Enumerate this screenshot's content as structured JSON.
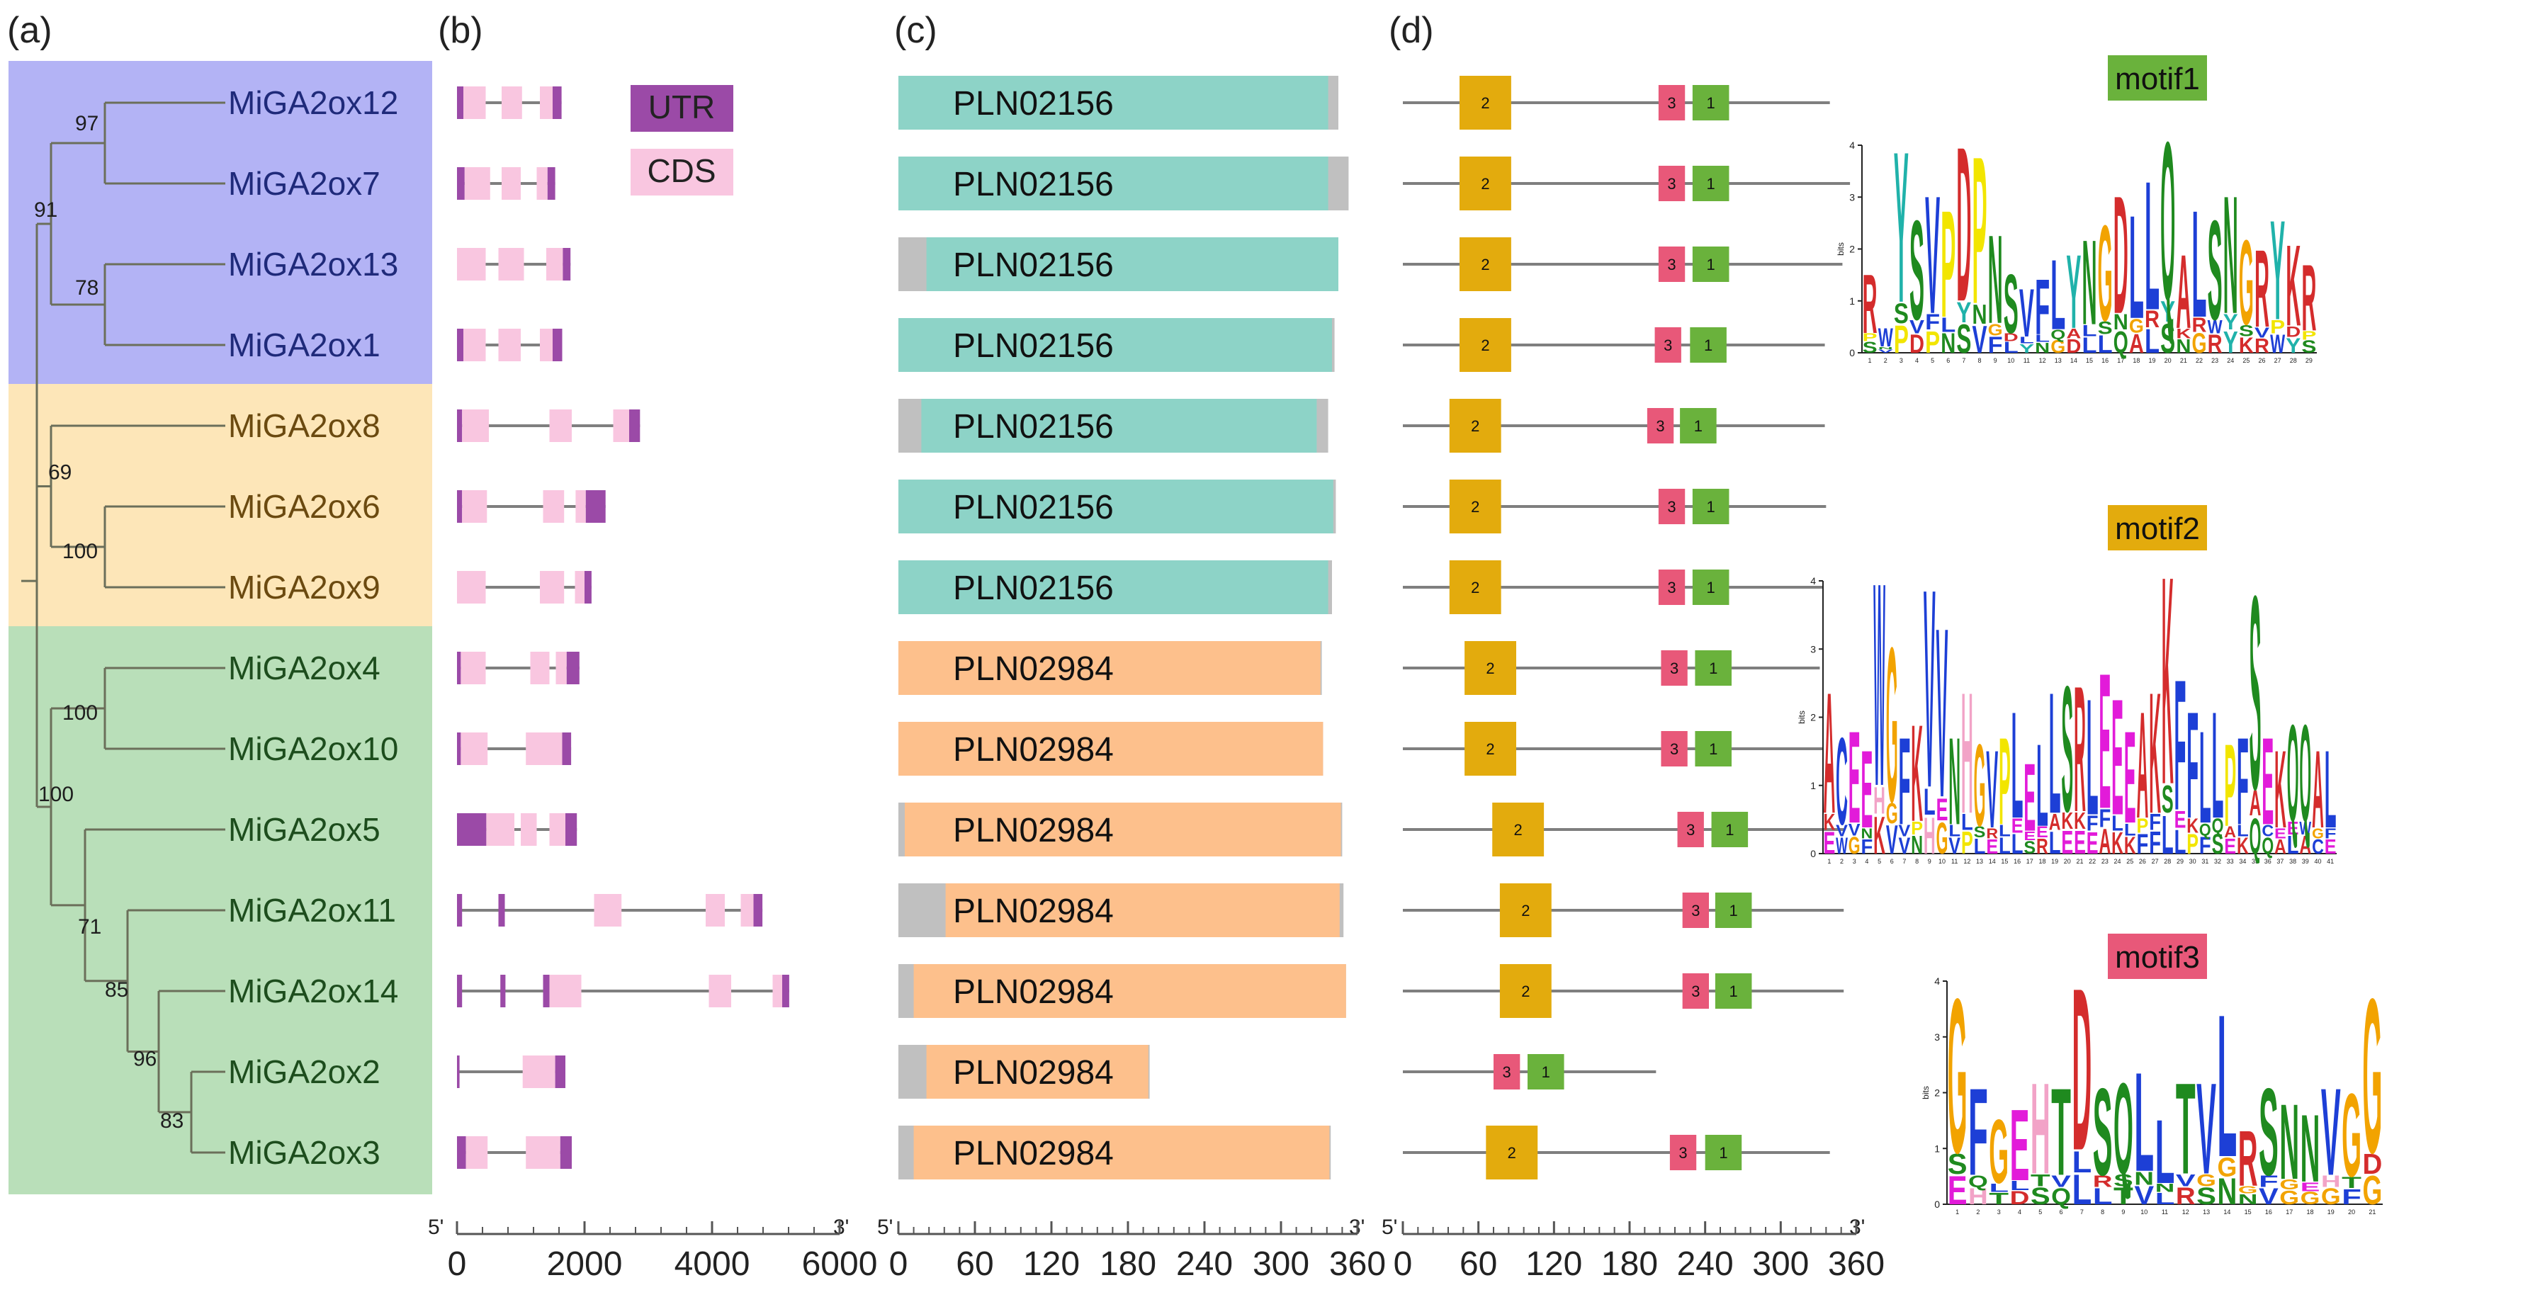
{
  "panels": {
    "a": "(a)",
    "b": "(b)",
    "c": "(c)",
    "d": "(d)"
  },
  "genes": [
    {
      "name": "MiGA2ox12",
      "clade": "blue"
    },
    {
      "name": "MiGA2ox7",
      "clade": "blue"
    },
    {
      "name": "MiGA2ox13",
      "clade": "blue"
    },
    {
      "name": "MiGA2ox1",
      "clade": "blue"
    },
    {
      "name": "MiGA2ox8",
      "clade": "orange"
    },
    {
      "name": "MiGA2ox6",
      "clade": "orange"
    },
    {
      "name": "MiGA2ox9",
      "clade": "orange"
    },
    {
      "name": "MiGA2ox4",
      "clade": "green"
    },
    {
      "name": "MiGA2ox10",
      "clade": "green"
    },
    {
      "name": "MiGA2ox5",
      "clade": "green"
    },
    {
      "name": "MiGA2ox11",
      "clade": "green"
    },
    {
      "name": "MiGA2ox14",
      "clade": "green"
    },
    {
      "name": "MiGA2ox2",
      "clade": "green"
    },
    {
      "name": "MiGA2ox3",
      "clade": "green"
    }
  ],
  "clade_colors": {
    "blue": "#b3b3f5",
    "orange": "#fde6b8",
    "green": "#b9dfb9"
  },
  "label_colors": {
    "blue": "#1f2a7a",
    "orange": "#6b4a10",
    "green": "#1d4d1d"
  },
  "bootstrap": [
    "97",
    "91",
    "78",
    "69",
    "100",
    "100",
    "100",
    "71",
    "85",
    "96",
    "83"
  ],
  "legend": {
    "utr": "UTR",
    "cds": "CDS",
    "utr_color": "#9b4aa7",
    "cds_color": "#f9c6e0"
  },
  "gene_structure_axis": {
    "five": "5'",
    "three": "3'",
    "ticks": [
      "0",
      "2000",
      "4000",
      "6000"
    ],
    "range": [
      0,
      6000
    ]
  },
  "domain_axis": {
    "five": "5'",
    "three": "3'",
    "ticks": [
      "0",
      "60",
      "120",
      "180",
      "240",
      "300",
      "360"
    ],
    "range": [
      0,
      360
    ]
  },
  "motif_axis": {
    "five": "5'",
    "three": "3'",
    "ticks": [
      "0",
      "60",
      "120",
      "180",
      "240",
      "300",
      "360"
    ],
    "range": [
      0,
      360
    ]
  },
  "domains": [
    {
      "label": "PLN02156",
      "type": "teal",
      "total": 345,
      "gray_start": 0,
      "start": 0,
      "end": 337
    },
    {
      "label": "PLN02156",
      "type": "teal",
      "total": 353,
      "gray_start": 0,
      "start": 0,
      "end": 337
    },
    {
      "label": "PLN02156",
      "type": "teal",
      "total": 345,
      "gray_start": 0,
      "start": 22,
      "end": 345
    },
    {
      "label": "PLN02156",
      "type": "teal",
      "total": 342,
      "gray_start": 0,
      "start": 0,
      "end": 340
    },
    {
      "label": "PLN02156",
      "type": "teal",
      "total": 337,
      "gray_start": 0,
      "start": 18,
      "end": 328
    },
    {
      "label": "PLN02156",
      "type": "teal",
      "total": 343,
      "gray_start": 0,
      "start": 0,
      "end": 341
    },
    {
      "label": "PLN02156",
      "type": "teal",
      "total": 340,
      "gray_start": 0,
      "start": 0,
      "end": 337
    },
    {
      "label": "PLN02984",
      "type": "peach",
      "total": 332,
      "gray_start": 0,
      "start": 0,
      "end": 331
    },
    {
      "label": "PLN02984",
      "type": "peach",
      "total": 333,
      "gray_start": 0,
      "start": 0,
      "end": 333
    },
    {
      "label": "PLN02984",
      "type": "peach",
      "total": 348,
      "gray_start": 0,
      "start": 5,
      "end": 347
    },
    {
      "label": "PLN02984",
      "type": "peach",
      "total": 349,
      "gray_start": 0,
      "start": 37,
      "end": 346
    },
    {
      "label": "PLN02984",
      "type": "peach",
      "total": 351,
      "gray_start": 0,
      "start": 12,
      "end": 351
    },
    {
      "label": "PLN02984",
      "type": "peach",
      "total": 197,
      "gray_start": 0,
      "start": 22,
      "end": 196
    },
    {
      "label": "PLN02984",
      "type": "peach",
      "total": 339,
      "gray_start": 0,
      "start": 12,
      "end": 338
    }
  ],
  "domain_colors": {
    "teal": "#8dd3c7",
    "peach": "#fdc08c",
    "gray": "#c0c0c0"
  },
  "motifs": [
    {
      "len": 339,
      "m2": 45,
      "m3": 203,
      "m1": 230
    },
    {
      "len": 355,
      "m2": 45,
      "m3": 203,
      "m1": 230
    },
    {
      "len": 349,
      "m2": 45,
      "m3": 203,
      "m1": 230
    },
    {
      "len": 335,
      "m2": 45,
      "m3": 200,
      "m1": 228
    },
    {
      "len": 335,
      "m2": 37,
      "m3": 194,
      "m1": 220
    },
    {
      "len": 336,
      "m2": 37,
      "m3": 203,
      "m1": 230
    },
    {
      "len": 333,
      "m2": 37,
      "m3": 203,
      "m1": 230
    },
    {
      "len": 331,
      "m2": 49,
      "m3": 205,
      "m1": 232
    },
    {
      "len": 333,
      "m2": 49,
      "m3": 205,
      "m1": 232
    },
    {
      "len": 350,
      "m2": 71,
      "m3": 218,
      "m1": 245
    },
    {
      "len": 350,
      "m2": 77,
      "m3": 222,
      "m1": 248
    },
    {
      "len": 350,
      "m2": 77,
      "m3": 222,
      "m1": 248
    },
    {
      "len": 201,
      "m2": null,
      "m3": 72,
      "m1": 99
    },
    {
      "len": 339,
      "m2": 66,
      "m3": 212,
      "m1": 240
    }
  ],
  "motif_lengths": {
    "m1": 29,
    "m2": 41,
    "m3": 21
  },
  "motif_numbers": {
    "m1": "1",
    "m2": "2",
    "m3": "3"
  },
  "motif_colors": {
    "m1": "#6ab23c",
    "m2": "#e3ab0d",
    "m3": "#e85879"
  },
  "motif_titles": [
    {
      "label": "motif1",
      "color": "#6ab23c"
    },
    {
      "label": "motif2",
      "color": "#e3ab0d"
    },
    {
      "label": "motif3",
      "color": "#e85879"
    }
  ],
  "logo_axis": {
    "ylabel": "bits",
    "ticks": [
      "0",
      "1",
      "2",
      "3",
      "4"
    ]
  },
  "logo_positions": {
    "motif1": [
      "1",
      "2",
      "3",
      "4",
      "5",
      "6",
      "7",
      "8",
      "9",
      "10",
      "11",
      "12",
      "13",
      "14",
      "15",
      "16",
      "17",
      "18",
      "19",
      "20",
      "21",
      "22",
      "23",
      "24",
      "25",
      "26",
      "27",
      "28",
      "29"
    ],
    "motif2": [
      "1",
      "2",
      "3",
      "4",
      "5",
      "6",
      "7",
      "8",
      "9",
      "10",
      "11",
      "12",
      "13",
      "14",
      "15",
      "16",
      "17",
      "18",
      "19",
      "20",
      "21",
      "22",
      "23",
      "24",
      "25",
      "26",
      "27",
      "28",
      "29",
      "30",
      "31",
      "32",
      "33",
      "34",
      "35",
      "36",
      "37",
      "38",
      "39",
      "40",
      "41"
    ],
    "motif3": [
      "1",
      "2",
      "3",
      "4",
      "5",
      "6",
      "7",
      "8",
      "9",
      "10",
      "11",
      "12",
      "13",
      "14",
      "15",
      "16",
      "17",
      "18",
      "19",
      "20",
      "21"
    ]
  },
  "logo_consensus": {
    "motif1": "RWYSVPDPNSVFLYNGDLLQALSNGRYK",
    "motif2": "ACEEWGFKVVNHGVPLELLSRLEEEAKKFFLLPFSEKQQAL",
    "motif3": "GFGEHTDSQLLTVLRSNNVGG"
  },
  "gene_structures": [
    {
      "len": 1640,
      "segs": [
        [
          "u",
          0,
          100
        ],
        [
          "c",
          100,
          450
        ],
        [
          "c",
          700,
          1020
        ],
        [
          "c",
          1300,
          1500
        ],
        [
          "u",
          1500,
          1640
        ]
      ]
    },
    {
      "len": 1540,
      "segs": [
        [
          "u",
          0,
          120
        ],
        [
          "c",
          120,
          520
        ],
        [
          "c",
          700,
          1000
        ],
        [
          "c",
          1250,
          1420
        ],
        [
          "u",
          1420,
          1540
        ]
      ]
    },
    {
      "len": 1780,
      "segs": [
        [
          "c",
          0,
          450
        ],
        [
          "c",
          650,
          1050
        ],
        [
          "c",
          1400,
          1660
        ],
        [
          "u",
          1660,
          1780
        ]
      ]
    },
    {
      "len": 1650,
      "segs": [
        [
          "u",
          0,
          100
        ],
        [
          "c",
          100,
          450
        ],
        [
          "c",
          650,
          1000
        ],
        [
          "c",
          1300,
          1500
        ],
        [
          "u",
          1500,
          1650
        ]
      ]
    },
    {
      "len": 2870,
      "segs": [
        [
          "u",
          0,
          80
        ],
        [
          "c",
          80,
          500
        ],
        [
          "c",
          1450,
          1800
        ],
        [
          "c",
          2450,
          2700
        ],
        [
          "u",
          2700,
          2870
        ]
      ]
    },
    {
      "len": 2330,
      "segs": [
        [
          "u",
          0,
          80
        ],
        [
          "c",
          80,
          470
        ],
        [
          "c",
          1350,
          1680
        ],
        [
          "c",
          1860,
          2020
        ],
        [
          "u",
          2020,
          2330
        ]
      ]
    },
    {
      "len": 2110,
      "segs": [
        [
          "c",
          0,
          450
        ],
        [
          "c",
          1300,
          1680
        ],
        [
          "c",
          1850,
          2000
        ],
        [
          "u",
          2000,
          2110
        ]
      ]
    },
    {
      "len": 1920,
      "segs": [
        [
          "u",
          0,
          60
        ],
        [
          "c",
          60,
          450
        ],
        [
          "c",
          1150,
          1450
        ],
        [
          "c",
          1550,
          1720
        ],
        [
          "u",
          1720,
          1920
        ]
      ]
    },
    {
      "len": 1790,
      "segs": [
        [
          "u",
          0,
          60
        ],
        [
          "c",
          60,
          480
        ],
        [
          "c",
          1080,
          1650
        ],
        [
          "u",
          1650,
          1790
        ]
      ]
    },
    {
      "len": 1880,
      "segs": [
        [
          "u",
          0,
          460
        ],
        [
          "c",
          460,
          900
        ],
        [
          "c",
          1000,
          1250
        ],
        [
          "c",
          1450,
          1700
        ],
        [
          "u",
          1700,
          1880
        ]
      ]
    },
    {
      "len": 4790,
      "segs": [
        [
          "u",
          0,
          80
        ],
        [
          "u",
          650,
          750
        ],
        [
          "c",
          2150,
          2580
        ],
        [
          "c",
          3900,
          4200
        ],
        [
          "c",
          4450,
          4650
        ],
        [
          "u",
          4650,
          4790
        ]
      ]
    },
    {
      "len": 5210,
      "segs": [
        [
          "u",
          0,
          80
        ],
        [
          "u",
          680,
          760
        ],
        [
          "u",
          1350,
          1450
        ],
        [
          "c",
          1450,
          1950
        ],
        [
          "c",
          3950,
          4300
        ],
        [
          "c",
          4950,
          5100
        ],
        [
          "u",
          5100,
          5210
        ]
      ]
    },
    {
      "len": 1700,
      "segs": [
        [
          "u",
          0,
          40
        ],
        [
          "c",
          1030,
          1540
        ],
        [
          "u",
          1540,
          1700
        ]
      ]
    },
    {
      "len": 1800,
      "segs": [
        [
          "u",
          0,
          140
        ],
        [
          "c",
          140,
          480
        ],
        [
          "c",
          1080,
          1620
        ],
        [
          "u",
          1620,
          1800
        ]
      ]
    }
  ]
}
